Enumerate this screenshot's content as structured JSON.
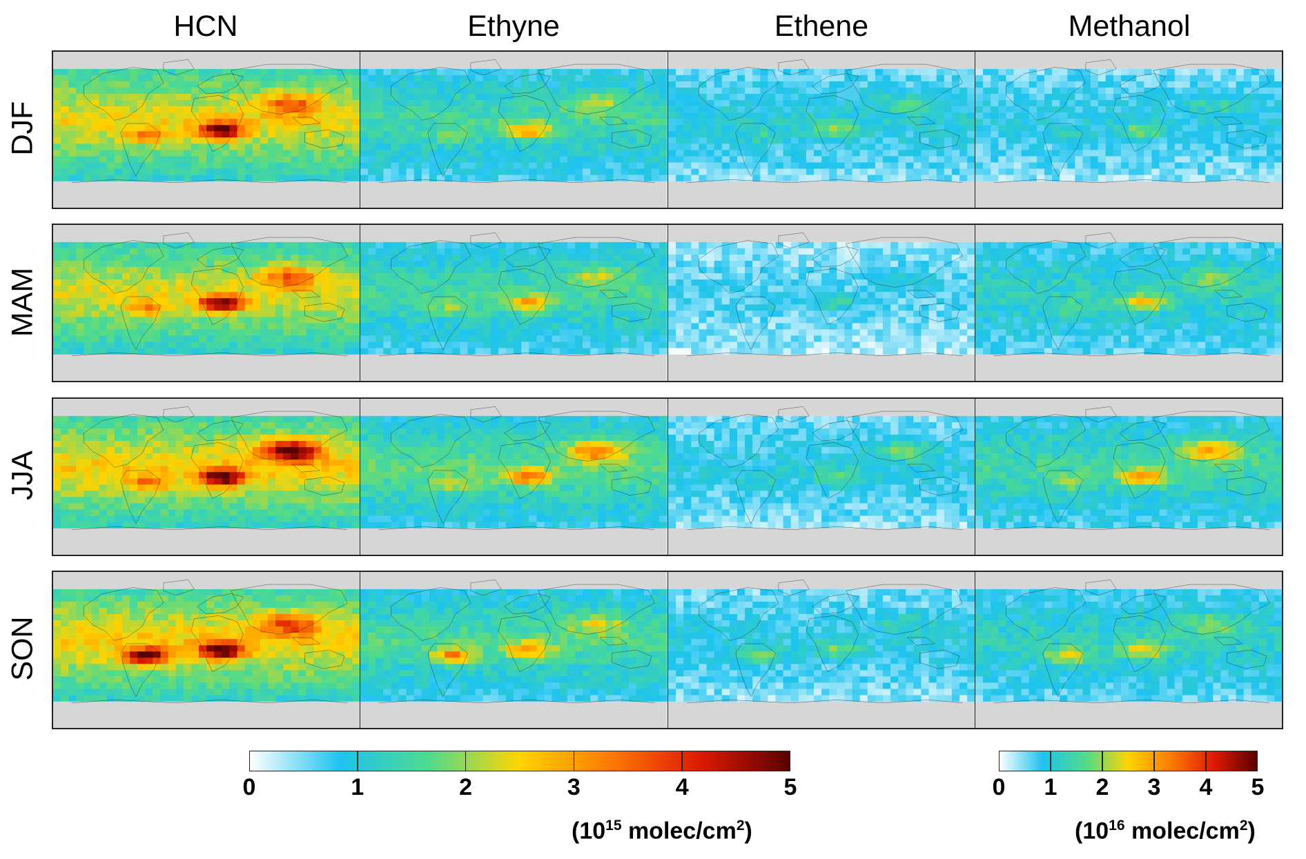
{
  "columns": [
    {
      "title": "HCN",
      "scale": "a"
    },
    {
      "title": "Ethyne",
      "scale": "a"
    },
    {
      "title": "Ethene",
      "scale": "a"
    },
    {
      "title": "Methanol",
      "scale": "b"
    }
  ],
  "rows": [
    {
      "label": "DJF"
    },
    {
      "label": "MAM"
    },
    {
      "label": "JJA"
    },
    {
      "label": "SON"
    }
  ],
  "colorbars": {
    "a": {
      "ticks": [
        "0",
        "1",
        "2",
        "3",
        "4",
        "5"
      ],
      "units_base": "(10",
      "units_exp": "15",
      "units_rest": " molec/cm",
      "units_exp2": "2",
      "units_close": ")",
      "range": [
        0,
        5
      ]
    },
    "b": {
      "ticks": [
        "0",
        "1",
        "2",
        "3",
        "4",
        "5"
      ],
      "units_base": "(10",
      "units_exp": "16",
      "units_rest": " molec/cm",
      "units_exp2": "2",
      "units_close": ")",
      "range": [
        0,
        5
      ]
    }
  },
  "colormap": [
    "#ffffff",
    "#1ec3ef",
    "#4fdb8c",
    "#ffd400",
    "#ff7a00",
    "#dd1a00",
    "#5a0000"
  ],
  "missing_data_color": "#d6d6d6",
  "field_levels": {
    "note": "approximate 0-5 column levels per panel region",
    "HCN": {
      "DJF": 2.2,
      "MAM": 2.1,
      "JJA": 2.3,
      "SON": 2.3
    },
    "Ethyne": {
      "DJF": 1.3,
      "MAM": 1.3,
      "JJA": 1.5,
      "SON": 1.4
    },
    "Ethene": {
      "DJF": 0.9,
      "MAM": 0.6,
      "JJA": 0.8,
      "SON": 0.8
    },
    "Methanol": {
      "DJF": 0.8,
      "MAM": 1.1,
      "JJA": 1.3,
      "SON": 1.1
    }
  }
}
